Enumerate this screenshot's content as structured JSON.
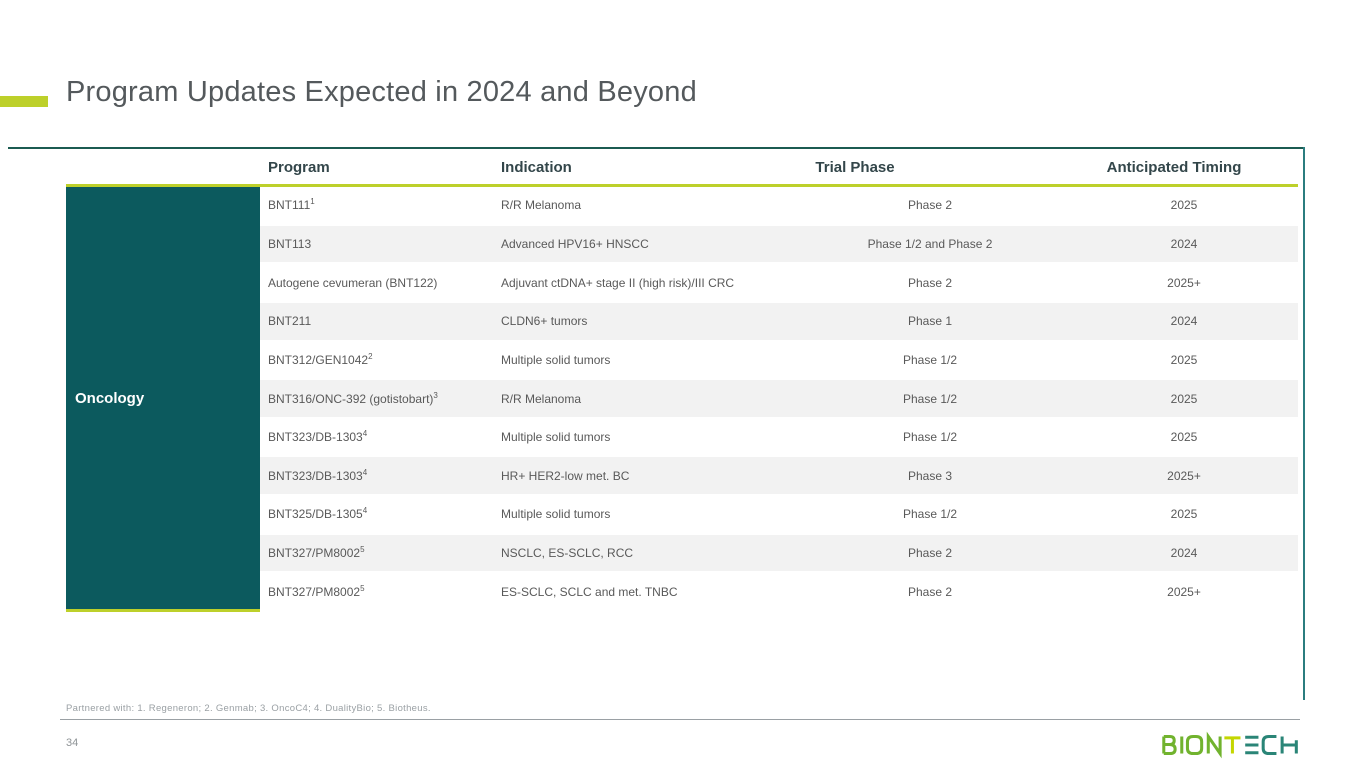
{
  "slide": {
    "title": "Program Updates Expected in 2024 and Beyond",
    "footnote": "Partnered with: 1. Regeneron; 2. Genmab; 3. OncoC4; 4. DualityBio; 5. Biotheus.",
    "page_number": "34",
    "logo_text": "BIONTECH"
  },
  "table": {
    "group_label": "Oncology",
    "columns": [
      "Program",
      "Indication",
      "Trial Phase",
      "Anticipated Timing"
    ],
    "rows": [
      {
        "program": "BNT111",
        "sup": "1",
        "indication": "R/R Melanoma",
        "trial_phase": "Phase 2",
        "timing": "2025"
      },
      {
        "program": "BNT113",
        "sup": "",
        "indication": "Advanced HPV16+ HNSCC",
        "trial_phase": "Phase 1/2 and Phase 2",
        "timing": "2024"
      },
      {
        "program": "Autogene cevumeran (BNT122)",
        "sup": "",
        "indication": "Adjuvant ctDNA+ stage II (high risk)/III CRC",
        "trial_phase": "Phase 2",
        "timing": "2025+"
      },
      {
        "program": "BNT211",
        "sup": "",
        "indication": "CLDN6+ tumors",
        "trial_phase": "Phase 1",
        "timing": "2024"
      },
      {
        "program": "BNT312/GEN1042",
        "sup": "2",
        "indication": "Multiple solid tumors",
        "trial_phase": "Phase 1/2",
        "timing": "2025"
      },
      {
        "program": "BNT316/ONC-392 (gotistobart)",
        "sup": "3",
        "indication": "R/R Melanoma",
        "trial_phase": "Phase 1/2",
        "timing": "2025"
      },
      {
        "program": "BNT323/DB-1303",
        "sup": "4",
        "indication": "Multiple solid tumors",
        "trial_phase": "Phase 1/2",
        "timing": "2025"
      },
      {
        "program": "BNT323/DB-1303",
        "sup": "4",
        "indication": "HR+ HER2-low met. BC",
        "trial_phase": "Phase 3",
        "timing": "2025+"
      },
      {
        "program": "BNT325/DB-1305",
        "sup": "4",
        "indication": "Multiple solid tumors",
        "trial_phase": "Phase 1/2",
        "timing": "2025"
      },
      {
        "program": "BNT327/PM8002",
        "sup": "5",
        "indication": "NSCLC, ES-SCLC, RCC",
        "trial_phase": "Phase 2",
        "timing": "2024"
      },
      {
        "program": "BNT327/PM8002",
        "sup": "5",
        "indication": "ES-SCLC, SCLC and met. TNBC",
        "trial_phase": "Phase 2",
        "timing": "2025+"
      }
    ]
  },
  "colors": {
    "accent_chartreuse": "#bdd02a",
    "teal_block": "#0c5a5e",
    "table_top_rule": "#1b5b51",
    "table_right_rule": "#2b7d7f",
    "zebra_stripe": "#f2f2f2",
    "header_text": "#33464a",
    "body_text": "#595959",
    "title_text": "#54595c",
    "footnote_text": "#9aa0a4",
    "logo_green": "#71b32e",
    "logo_yellow_green": "#c4d600",
    "logo_teal": "#2a8577"
  }
}
